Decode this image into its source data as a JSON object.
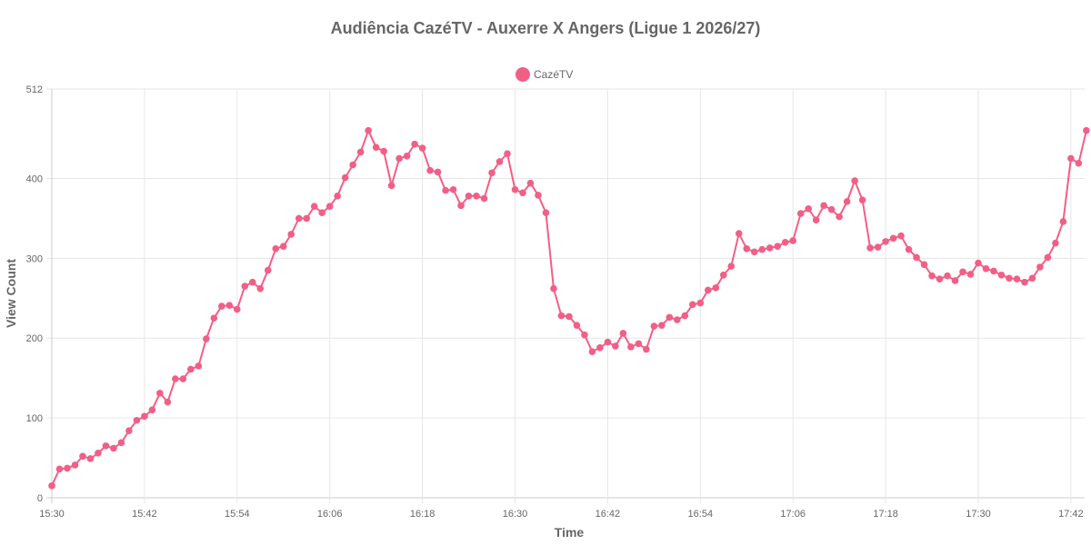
{
  "chart_data": {
    "type": "line",
    "title": "Audiência CazéTV - Auxerre X Angers (Ligue 1 2026/27)",
    "xlabel": "Time",
    "ylabel": "View Count",
    "ylim": [
      0,
      512
    ],
    "y_ticks": [
      0,
      100,
      200,
      300,
      400,
      512
    ],
    "x_tick_labels": [
      "15:30",
      "15:42",
      "15:54",
      "16:06",
      "16:18",
      "16:30",
      "16:42",
      "16:54",
      "17:06",
      "17:18",
      "17:30",
      "17:42"
    ],
    "x_start": "15:30",
    "interval_minutes": 1,
    "grid": true,
    "legend_position": "top",
    "series": [
      {
        "name": "CazéTV",
        "color": "#f25f86",
        "values": [
          15,
          36,
          37,
          41,
          52,
          49,
          56,
          65,
          62,
          69,
          84,
          97,
          102,
          110,
          131,
          120,
          149,
          149,
          161,
          165,
          199,
          225,
          240,
          241,
          236,
          265,
          270,
          262,
          285,
          312,
          315,
          330,
          350,
          350,
          365,
          357,
          365,
          378,
          401,
          417,
          433,
          460,
          439,
          434,
          391,
          425,
          428,
          443,
          438,
          410,
          408,
          385,
          386,
          366,
          378,
          378,
          375,
          407,
          421,
          431,
          386,
          382,
          394,
          379,
          357,
          262,
          228,
          227,
          216,
          204,
          183,
          188,
          195,
          190,
          206,
          189,
          193,
          186,
          215,
          216,
          226,
          223,
          228,
          242,
          244,
          260,
          263,
          279,
          290,
          331,
          312,
          308,
          311,
          313,
          315,
          320,
          322,
          356,
          362,
          348,
          366,
          361,
          352,
          371,
          397,
          373,
          313,
          314,
          321,
          325,
          328,
          311,
          301,
          292,
          278,
          274,
          278,
          272,
          283,
          280,
          294,
          287,
          284,
          279,
          275,
          274,
          270,
          275,
          289,
          301,
          319,
          346,
          425,
          419,
          460
        ]
      }
    ]
  }
}
